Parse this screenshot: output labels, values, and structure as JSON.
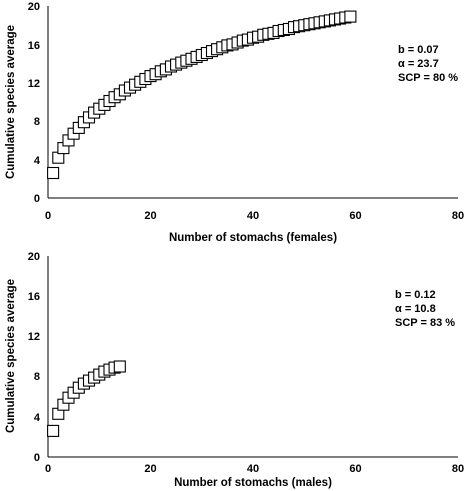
{
  "chart_data": [
    {
      "type": "scatter",
      "title": "",
      "xlabel": "Number of stomachs (females)",
      "ylabel": "Cumulative species average",
      "xlim": [
        0,
        80
      ],
      "ylim": [
        0,
        20
      ],
      "xticks": [
        "0",
        "20",
        "40",
        "60",
        "80"
      ],
      "yticks": [
        "0",
        "4",
        "8",
        "12",
        "16",
        "20"
      ],
      "grid": false,
      "marker": "open-square",
      "annotation": [
        "b = 0.07",
        "α = 23.7",
        "SCP = 80 %"
      ],
      "series": [
        {
          "x": [
            1,
            2,
            3,
            4,
            5,
            6,
            7,
            8,
            9,
            10,
            11,
            12,
            13,
            14,
            15,
            16,
            17,
            18,
            19,
            20,
            21,
            22,
            23,
            24,
            25,
            26,
            27,
            28,
            29,
            30,
            31,
            32,
            33,
            34,
            35,
            36,
            37,
            38,
            39,
            40,
            41,
            42,
            43,
            44,
            45,
            46,
            47,
            48,
            49,
            50,
            51,
            52,
            53,
            54,
            55,
            56,
            57,
            58,
            59
          ],
          "y": [
            2.6,
            4.2,
            5.2,
            6.0,
            6.7,
            7.3,
            7.9,
            8.4,
            8.9,
            9.3,
            9.7,
            10.1,
            10.5,
            10.8,
            11.2,
            11.5,
            11.8,
            12.1,
            12.4,
            12.7,
            12.9,
            13.2,
            13.4,
            13.7,
            13.9,
            14.1,
            14.3,
            14.5,
            14.7,
            14.9,
            15.1,
            15.3,
            15.5,
            15.7,
            15.9,
            16.0,
            16.2,
            16.4,
            16.5,
            16.7,
            16.8,
            17.0,
            17.1,
            17.2,
            17.4,
            17.5,
            17.6,
            17.8,
            17.9,
            18.0,
            18.1,
            18.2,
            18.3,
            18.4,
            18.5,
            18.6,
            18.7,
            18.8,
            18.9
          ]
        }
      ]
    },
    {
      "type": "scatter",
      "title": "",
      "xlabel": "Number of stomachs (males)",
      "ylabel": "Cumulative species average",
      "xlim": [
        0,
        80
      ],
      "ylim": [
        0,
        20
      ],
      "xticks": [
        "0",
        "20",
        "40",
        "60",
        "80"
      ],
      "yticks": [
        "0",
        "4",
        "8",
        "12",
        "16",
        "20"
      ],
      "grid": false,
      "marker": "open-square",
      "annotation": [
        "b = 0.12",
        "α = 10.8",
        "SCP = 83 %"
      ],
      "series": [
        {
          "x": [
            1,
            2,
            3,
            4,
            5,
            6,
            7,
            8,
            9,
            10,
            11,
            12,
            13,
            14
          ],
          "y": [
            2.6,
            4.3,
            5.2,
            5.9,
            6.4,
            6.9,
            7.3,
            7.6,
            7.9,
            8.2,
            8.5,
            8.7,
            8.9,
            9.0
          ]
        }
      ]
    }
  ]
}
